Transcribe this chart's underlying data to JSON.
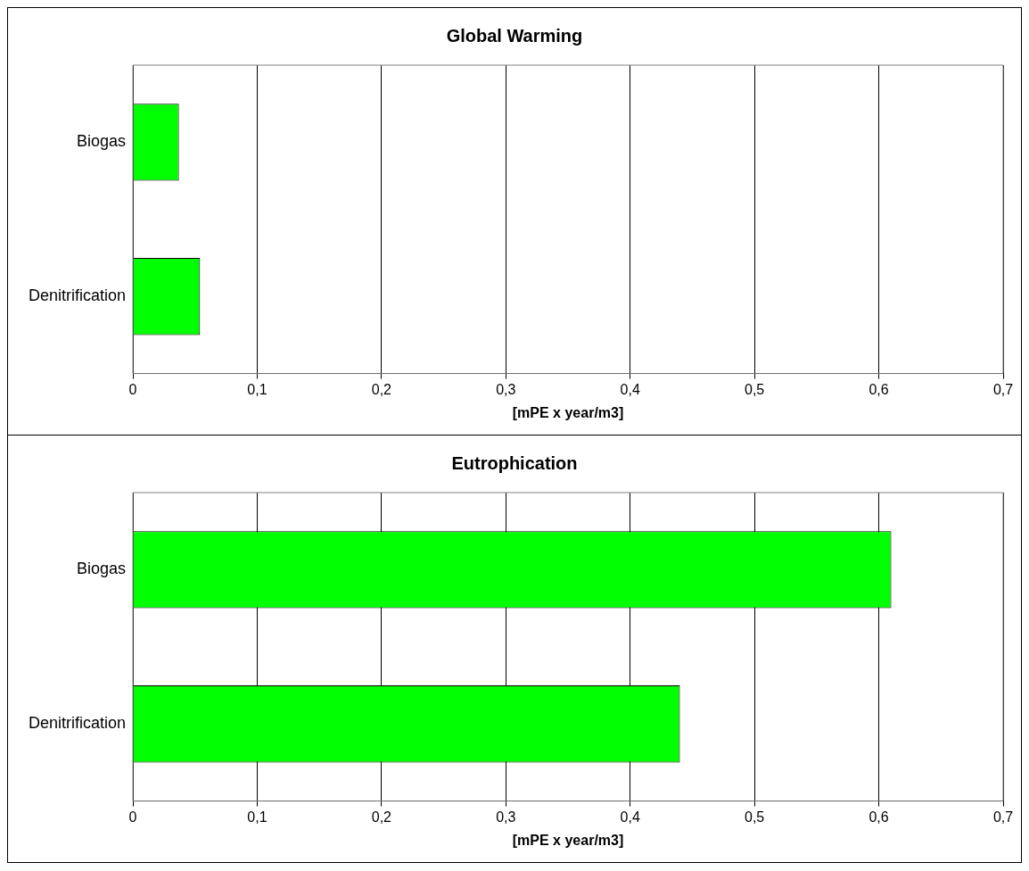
{
  "chart_data": [
    {
      "type": "bar",
      "orientation": "horizontal",
      "title": "Global Warming",
      "xlabel": "[mPE x year/m3]",
      "categories": [
        "Biogas",
        "Denitrification"
      ],
      "series": [
        {
          "color": "#00ff00",
          "values": [
            0.037,
            0.054
          ]
        }
      ],
      "xlim": [
        0,
        0.7
      ],
      "xticks": [
        0,
        {
          "value": 0.1,
          "label": "0,1"
        },
        {
          "value": 0.2,
          "label": "0,2"
        },
        {
          "value": 0.3,
          "label": "0,3"
        },
        {
          "value": 0.4,
          "label": "0,4"
        },
        {
          "value": 0.5,
          "label": "0,5"
        },
        {
          "value": 0.6,
          "label": "0,6"
        },
        {
          "value": 0.7,
          "label": "0,7"
        }
      ],
      "grid": "x",
      "legend": false
    },
    {
      "type": "bar",
      "orientation": "horizontal",
      "title": "Eutrophication",
      "xlabel": "[mPE x year/m3]",
      "categories": [
        "Biogas",
        "Denitrification"
      ],
      "series": [
        {
          "color": "#00ff00",
          "values": [
            0.61,
            0.44
          ]
        }
      ],
      "xlim": [
        0,
        0.7
      ],
      "xticks": [
        0,
        {
          "value": 0.1,
          "label": "0,1"
        },
        {
          "value": 0.2,
          "label": "0,2"
        },
        {
          "value": 0.3,
          "label": "0,3"
        },
        {
          "value": 0.4,
          "label": "0,4"
        },
        {
          "value": 0.5,
          "label": "0,5"
        },
        {
          "value": 0.6,
          "label": "0,6"
        },
        {
          "value": 0.7,
          "label": "0,7"
        }
      ],
      "grid": "x",
      "legend": false
    }
  ]
}
